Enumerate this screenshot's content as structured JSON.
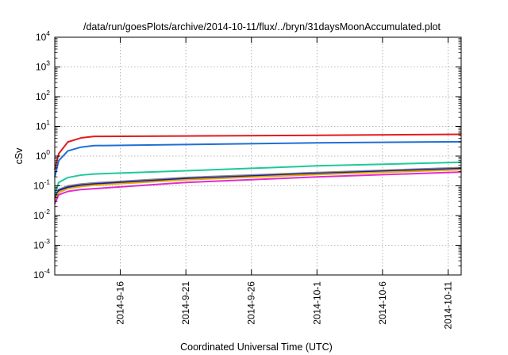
{
  "chart_data": {
    "type": "line",
    "title": "/data/run/goesPlots/archive/2014-10-11/flux/../bryn/31daysMoonAccumulated.plot",
    "xlabel": "Coordinated Universal Time (UTC)",
    "ylabel": "cSv",
    "xlim": [
      "2014-09-11",
      "2014-10-12"
    ],
    "ylim": [
      0.0001,
      10000
    ],
    "yscale": "log",
    "grid": true,
    "x_ticks": [
      "2014-9-16",
      "2014-9-21",
      "2014-9-26",
      "2014-10-1",
      "2014-10-6",
      "2014-10-11"
    ],
    "y_ticks": [
      {
        "base": "10",
        "exp": "-4",
        "value": 0.0001
      },
      {
        "base": "10",
        "exp": "-3",
        "value": 0.001
      },
      {
        "base": "10",
        "exp": "-2",
        "value": 0.01
      },
      {
        "base": "10",
        "exp": "-1",
        "value": 0.1
      },
      {
        "base": "10",
        "exp": "0",
        "value": 1
      },
      {
        "base": "10",
        "exp": "1",
        "value": 10
      },
      {
        "base": "10",
        "exp": "2",
        "value": 100
      },
      {
        "base": "10",
        "exp": "3",
        "value": 1000
      },
      {
        "base": "10",
        "exp": "4",
        "value": 10000
      }
    ],
    "series": [
      {
        "color": "#e41a1c",
        "x": [
          "2014-09-11",
          "2014-09-11.3",
          "2014-09-12",
          "2014-09-13",
          "2014-09-14",
          "2014-09-21",
          "2014-10-01",
          "2014-10-12"
        ],
        "y": [
          0.35,
          1.2,
          3.0,
          4.1,
          4.6,
          4.75,
          5.0,
          5.4
        ]
      },
      {
        "color": "#1f6fd6",
        "x": [
          "2014-09-11",
          "2014-09-11.3",
          "2014-09-12",
          "2014-09-13",
          "2014-09-14",
          "2014-09-21",
          "2014-10-01",
          "2014-10-12"
        ],
        "y": [
          0.2,
          0.7,
          1.5,
          2.0,
          2.25,
          2.45,
          2.8,
          3.05
        ]
      },
      {
        "color": "#1fc89a",
        "x": [
          "2014-09-11",
          "2014-09-11.3",
          "2014-09-12",
          "2014-09-13",
          "2014-09-14",
          "2014-09-21",
          "2014-10-01",
          "2014-10-12"
        ],
        "y": [
          0.05,
          0.13,
          0.19,
          0.23,
          0.25,
          0.32,
          0.47,
          0.62
        ]
      },
      {
        "color": "#888888",
        "x": [
          "2014-09-11",
          "2014-09-11.3",
          "2014-09-12",
          "2014-09-13",
          "2014-09-14",
          "2014-09-21",
          "2014-10-01",
          "2014-10-12"
        ],
        "y": [
          0.04,
          0.075,
          0.1,
          0.115,
          0.125,
          0.19,
          0.28,
          0.41
        ]
      },
      {
        "color": "#1a1aa6",
        "x": [
          "2014-09-11",
          "2014-09-11.3",
          "2014-09-12",
          "2014-09-13",
          "2014-09-14",
          "2014-09-21",
          "2014-10-01",
          "2014-10-12"
        ],
        "y": [
          0.035,
          0.07,
          0.09,
          0.105,
          0.115,
          0.175,
          0.26,
          0.38
        ]
      },
      {
        "color": "#e6ab02",
        "x": [
          "2014-09-11",
          "2014-09-11.3",
          "2014-09-12",
          "2014-09-13",
          "2014-09-14",
          "2014-09-21",
          "2014-10-01",
          "2014-10-12"
        ],
        "y": [
          0.03,
          0.06,
          0.08,
          0.095,
          0.105,
          0.16,
          0.24,
          0.35
        ]
      },
      {
        "color": "#e22bd0",
        "x": [
          "2014-09-11",
          "2014-09-11.3",
          "2014-09-12",
          "2014-09-13",
          "2014-09-14",
          "2014-09-21",
          "2014-10-01",
          "2014-10-12"
        ],
        "y": [
          0.025,
          0.05,
          0.065,
          0.075,
          0.08,
          0.13,
          0.2,
          0.29
        ]
      }
    ]
  }
}
